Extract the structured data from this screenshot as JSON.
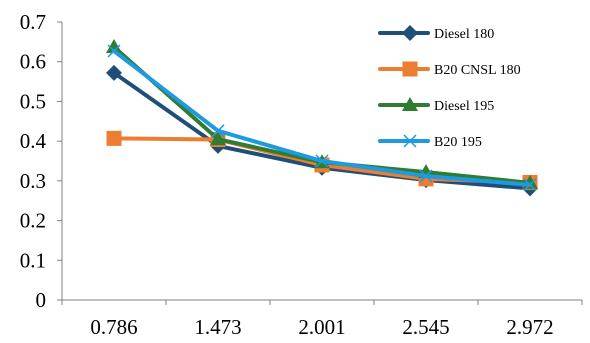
{
  "chart_data": {
    "type": "line",
    "title": "",
    "xlabel": "",
    "ylabel": "",
    "categories": [
      "0.786",
      "1.473",
      "2.001",
      "2.545",
      "2.972"
    ],
    "ylim": [
      0,
      0.7
    ],
    "yticks": [
      0,
      0.1,
      0.2,
      0.3,
      0.4,
      0.5,
      0.6,
      0.7
    ],
    "ytick_labels": [
      "0",
      "0.1",
      "0.2",
      "0.3",
      "0.4",
      "0.5",
      "0.6",
      "0.7"
    ],
    "grid": false,
    "legend_position": "top-right",
    "series": [
      {
        "name": "Diesel 180",
        "color": "#1F4E79",
        "marker": "diamond",
        "values": [
          0.572,
          0.388,
          0.333,
          0.302,
          0.281
        ]
      },
      {
        "name": "B20 CNSL 180",
        "color": "#ED7D31",
        "marker": "square",
        "values": [
          0.407,
          0.404,
          0.34,
          0.305,
          0.296
        ]
      },
      {
        "name": "Diesel 195",
        "color": "#2E7D32",
        "marker": "triangle",
        "values": [
          0.637,
          0.405,
          0.347,
          0.322,
          0.295
        ]
      },
      {
        "name": "B20 195",
        "color": "#1E9AE0",
        "marker": "x",
        "values": [
          0.627,
          0.426,
          0.35,
          0.312,
          0.29
        ]
      }
    ]
  }
}
